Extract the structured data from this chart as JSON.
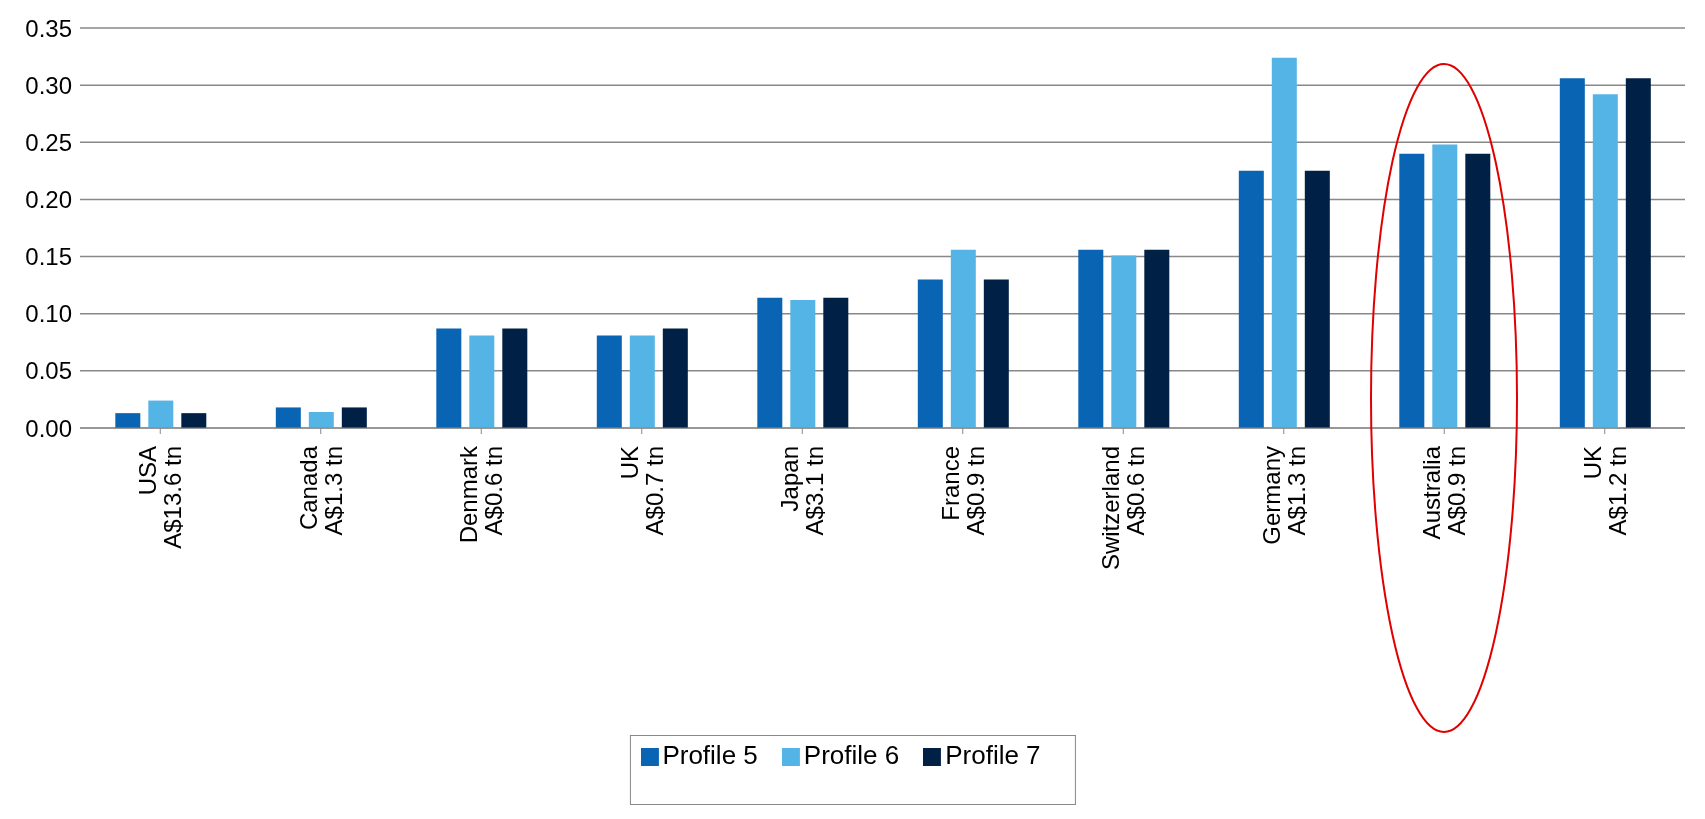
{
  "chart_data": {
    "type": "bar",
    "categories": [
      "USA\nA$13.6 tn",
      "Canada\nA$1.3 tn",
      "Denmark\nA$0.6 tn",
      "UK\nA$0.7 tn",
      "Japan\nA$3.1 tn",
      "France\nA$0.9 tn",
      "Switzerland\nA$0.6 tn",
      "Germany\nA$1.3 tn",
      "Australia\nA$0.9 tn",
      "UK\nA$1.2 tn"
    ],
    "series": [
      {
        "name": "Profile 5",
        "color": "#0a64b4",
        "values": [
          0.013,
          0.018,
          0.087,
          0.081,
          0.114,
          0.13,
          0.156,
          0.225,
          0.24,
          0.306
        ]
      },
      {
        "name": "Profile 6",
        "color": "#55b4e6",
        "values": [
          0.024,
          0.014,
          0.081,
          0.081,
          0.112,
          0.156,
          0.151,
          0.324,
          0.248,
          0.292
        ]
      },
      {
        "name": "Profile 7",
        "color": "#002046",
        "values": [
          0.013,
          0.018,
          0.087,
          0.087,
          0.114,
          0.13,
          0.156,
          0.225,
          0.24,
          0.306
        ]
      }
    ],
    "ylim": [
      0,
      0.35
    ],
    "yticks": [
      {
        "value": 0,
        "label": "0.00"
      },
      {
        "value": 0.05,
        "label": "0.05"
      },
      {
        "value": 0.1,
        "label": "0.10"
      },
      {
        "value": 0.15,
        "label": "0.15"
      },
      {
        "value": 0.2,
        "label": "0.20"
      },
      {
        "value": 0.25,
        "label": "0.25"
      },
      {
        "value": 0.3,
        "label": "0.30"
      },
      {
        "value": 0.35,
        "label": "0.35"
      }
    ],
    "grid": "y",
    "legend": "bottom"
  }
}
